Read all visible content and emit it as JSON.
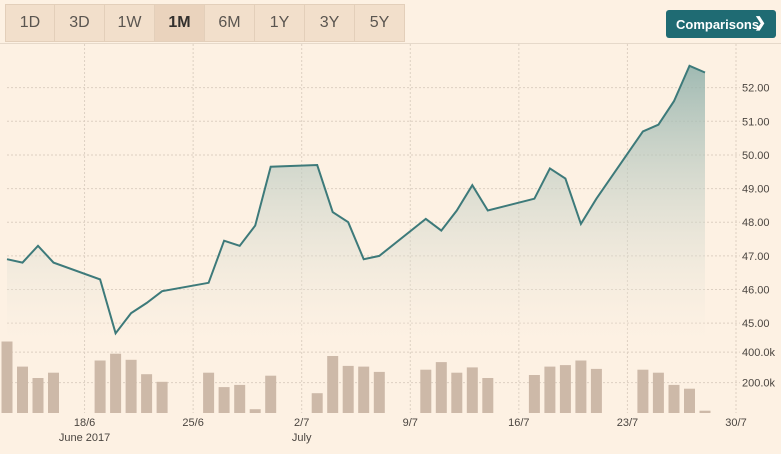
{
  "toolbar": {
    "ranges": [
      "1D",
      "3D",
      "1W",
      "1M",
      "6M",
      "1Y",
      "3Y",
      "5Y"
    ],
    "active_range": "1M",
    "comparisons_label": "Comparisons",
    "comparisons_icon": "chevron-right-icon"
  },
  "chart_data": [
    {
      "type": "area",
      "title": "",
      "x": [
        "2017-06-13",
        "2017-06-14",
        "2017-06-15",
        "2017-06-16",
        "2017-06-19",
        "2017-06-20",
        "2017-06-21",
        "2017-06-22",
        "2017-06-23",
        "2017-06-26",
        "2017-06-27",
        "2017-06-28",
        "2017-06-29",
        "2017-06-30",
        "2017-07-03",
        "2017-07-04",
        "2017-07-05",
        "2017-07-06",
        "2017-07-07",
        "2017-07-10",
        "2017-07-11",
        "2017-07-12",
        "2017-07-13",
        "2017-07-14",
        "2017-07-17",
        "2017-07-18",
        "2017-07-19",
        "2017-07-20",
        "2017-07-21",
        "2017-07-24",
        "2017-07-25",
        "2017-07-26",
        "2017-07-27",
        "2017-07-28"
      ],
      "values": [
        46.9,
        46.8,
        47.3,
        46.8,
        46.3,
        44.7,
        45.3,
        45.6,
        45.95,
        46.2,
        47.45,
        47.3,
        47.9,
        49.65,
        49.7,
        48.3,
        48.0,
        46.9,
        47.0,
        48.1,
        47.75,
        48.35,
        49.1,
        48.35,
        48.7,
        49.6,
        49.3,
        47.95,
        48.7,
        50.7,
        50.9,
        51.6,
        52.65,
        52.45
      ],
      "ylim": [
        44.5,
        53.0
      ],
      "yticks": [
        "45.00",
        "46.00",
        "47.00",
        "48.00",
        "49.00",
        "50.00",
        "51.00",
        "52.00"
      ],
      "grid": true,
      "color": "#3d7a7a"
    },
    {
      "type": "bar",
      "values": [
        470,
        305,
        230,
        265,
        345,
        390,
        350,
        255,
        205,
        265,
        170,
        185,
        25,
        245,
        130,
        375,
        310,
        305,
        270,
        285,
        335,
        265,
        300,
        230,
        250,
        305,
        315,
        345,
        290,
        285,
        265,
        185,
        160,
        15
      ],
      "yticks": [
        "200.0k",
        "400.0k"
      ],
      "ylim": [
        0,
        480
      ],
      "color": "#cdb9a8"
    }
  ],
  "x_ticks": [
    {
      "date": "2017-06-18",
      "label": "18/6",
      "sub": "June 2017"
    },
    {
      "date": "2017-06-25",
      "label": "25/6",
      "sub": ""
    },
    {
      "date": "2017-07-02",
      "label": "2/7",
      "sub": "July"
    },
    {
      "date": "2017-07-09",
      "label": "9/7",
      "sub": ""
    },
    {
      "date": "2017-07-16",
      "label": "16/7",
      "sub": ""
    },
    {
      "date": "2017-07-23",
      "label": "23/7",
      "sub": ""
    },
    {
      "date": "2017-07-30",
      "label": "30/7",
      "sub": ""
    }
  ]
}
